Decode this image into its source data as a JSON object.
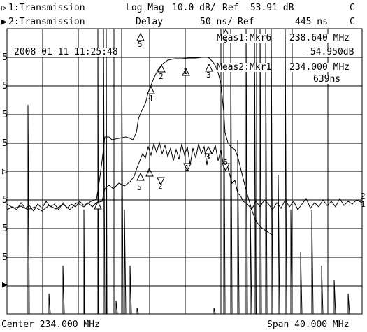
{
  "header": {
    "ch1_marker": "▷",
    "ch1_label": "1:Transmission",
    "ch1_format": "Log Mag",
    "ch1_scale": "10.0 dB/",
    "ch1_ref_label": "Ref",
    "ch1_ref_value": "-53.91 dB",
    "ch1_flag": "C",
    "ch2_marker": "▶",
    "ch2_label": "2:Transmission",
    "ch2_format": "Delay",
    "ch2_scale": "50 ns/",
    "ch2_ref_label": "Ref",
    "ch2_ref_value": "445 ns",
    "ch2_flag": "C"
  },
  "timestamp": "2008-01-11 11:25:48",
  "marker_readouts": [
    {
      "label": "Meas1:Mkr6",
      "value": "238.640 MHz",
      "secondary": "-54.950dB"
    },
    {
      "label": "Meas2:Mkr1",
      "value": "234.000 MHz",
      "secondary": "639ns"
    }
  ],
  "left_scale_labels": [
    "5",
    "5",
    "5",
    "5",
    "▷",
    "5",
    "5",
    "5",
    "▶"
  ],
  "right_scale_labels": [
    "2",
    "1"
  ],
  "footer": {
    "center_label": "Center 234.000 MHz",
    "span_label": "Span 40.000 MHz"
  },
  "marker_numbers": [
    "1",
    "2",
    "3",
    "4",
    "5",
    "6"
  ],
  "colors": {
    "background": "#ffffff",
    "trace": "#000000",
    "grid": "#000000"
  }
}
